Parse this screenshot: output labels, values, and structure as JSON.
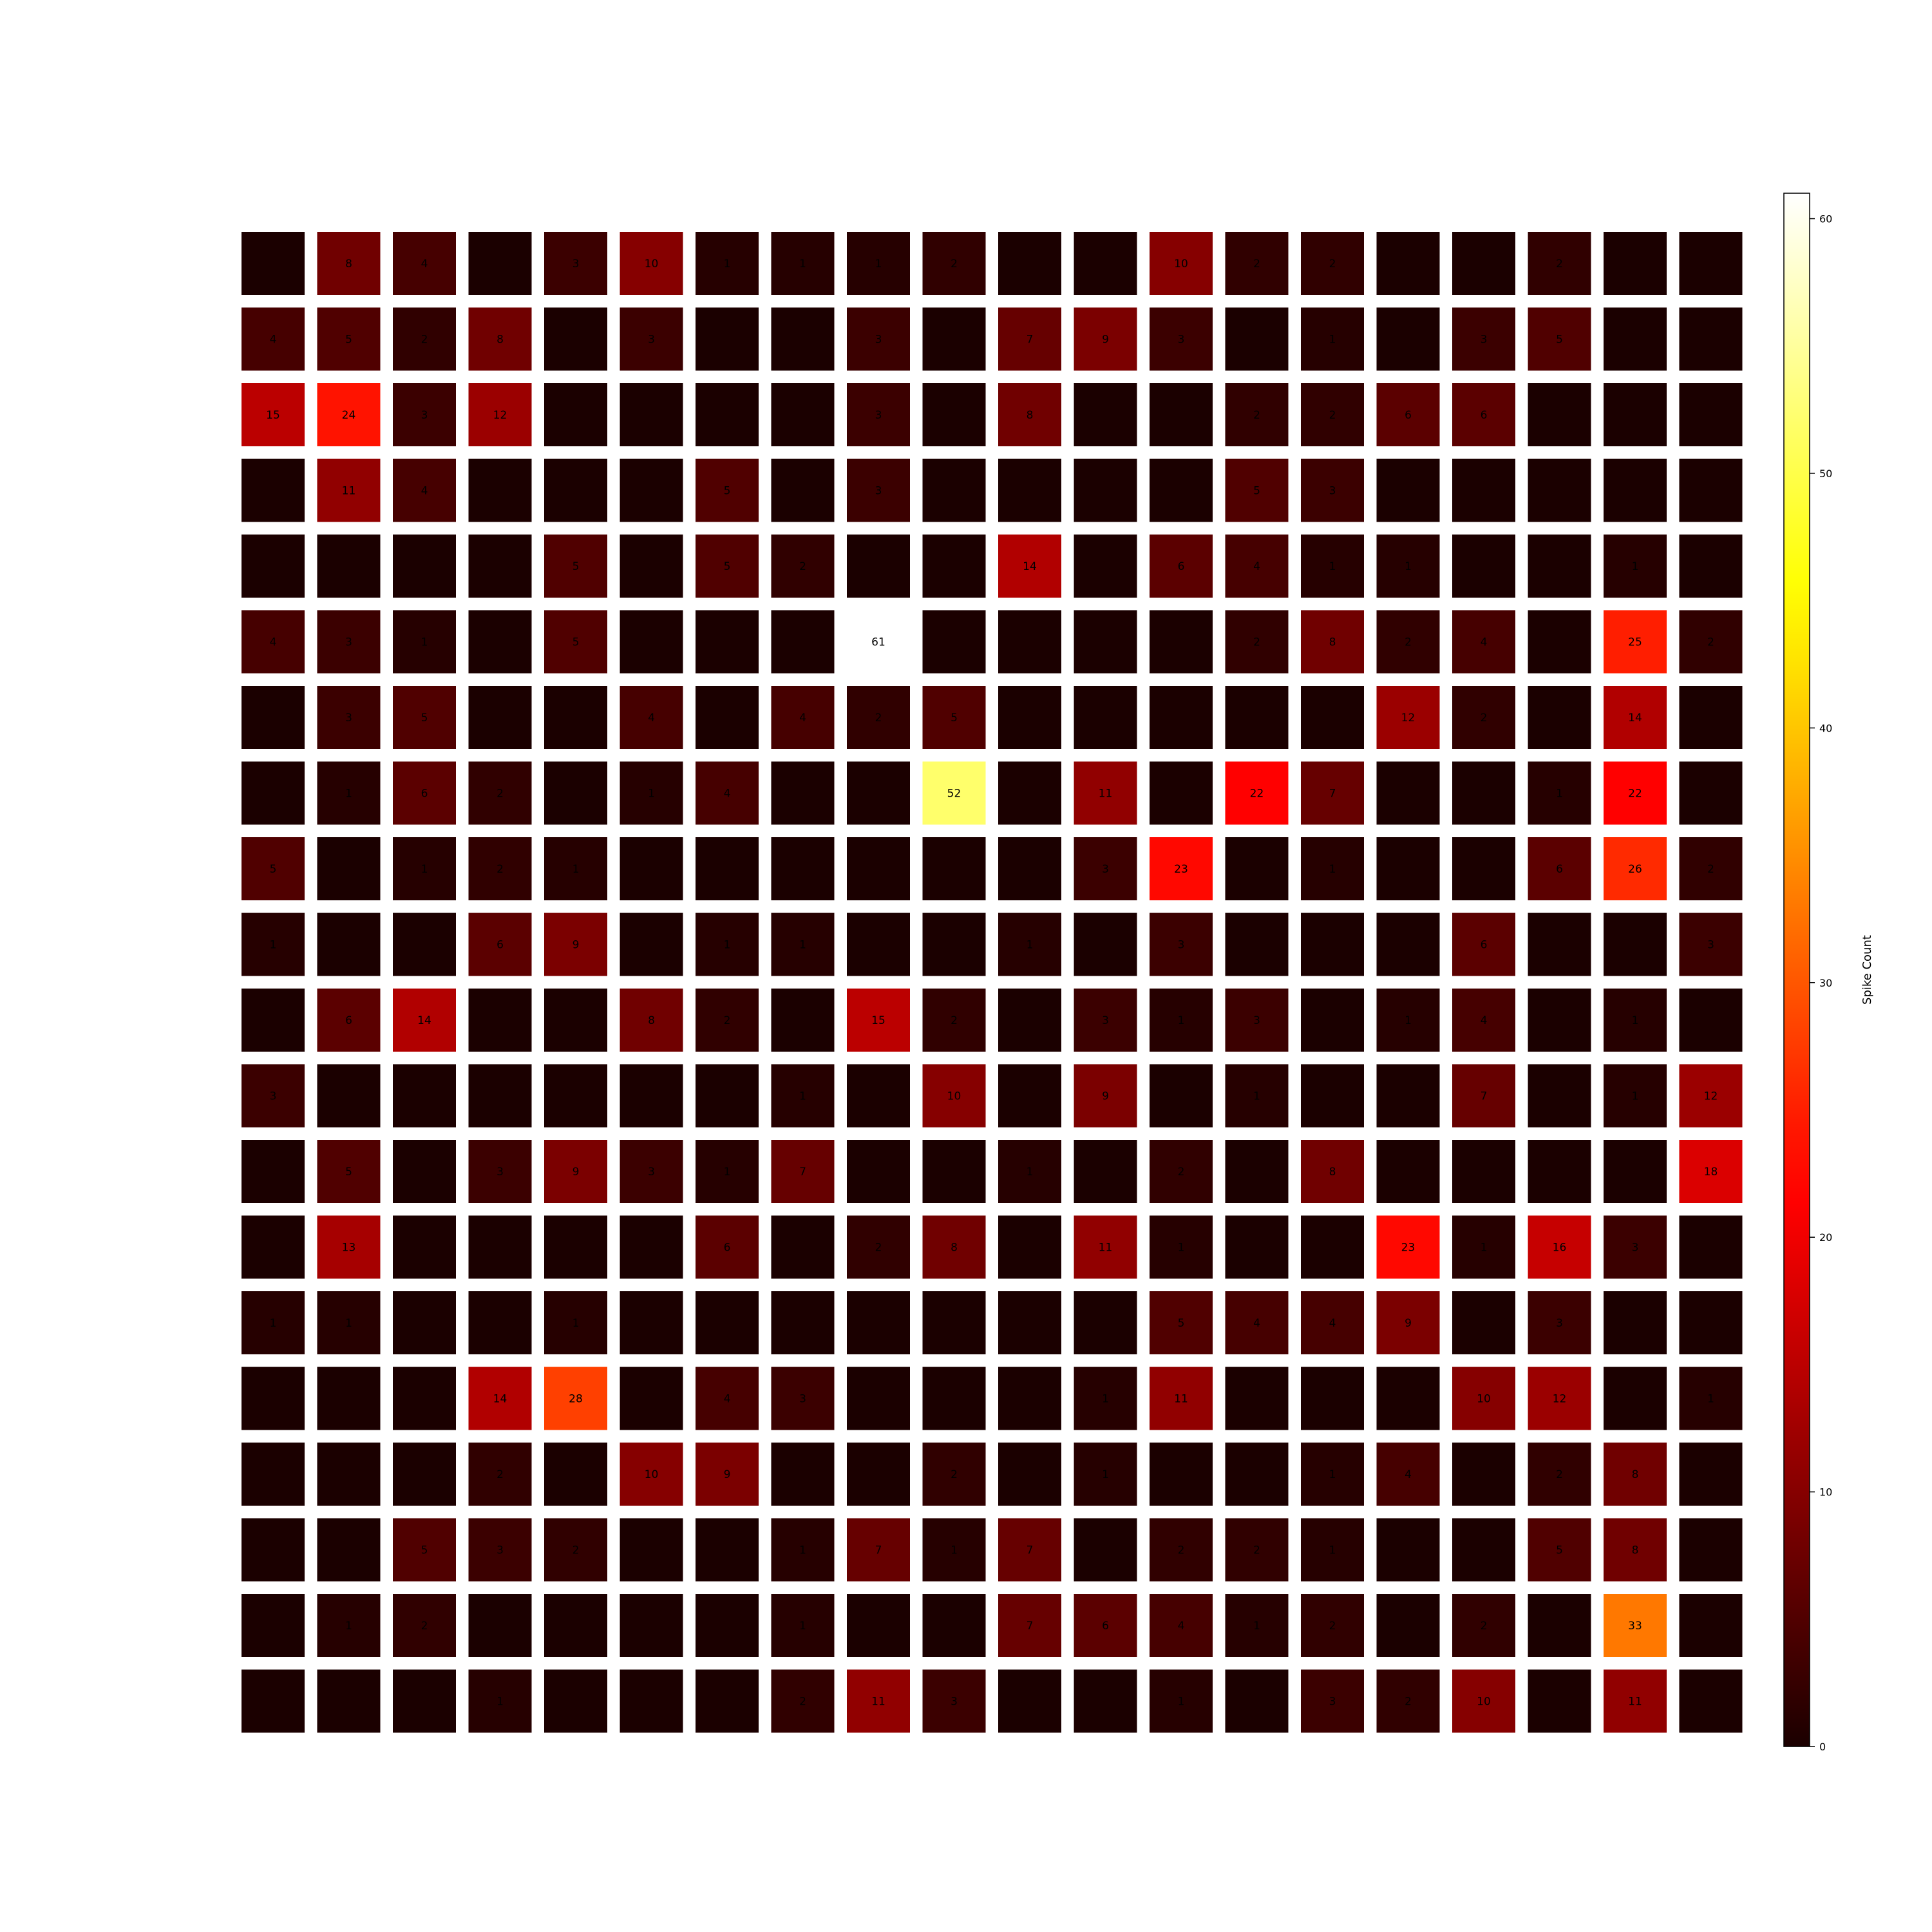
{
  "chart_data": {
    "type": "heatmap",
    "colormap": "hot",
    "rows": 20,
    "cols": 20,
    "values": [
      [
        0,
        8,
        4,
        0,
        3,
        10,
        1,
        1,
        1,
        2,
        0,
        0,
        10,
        2,
        2,
        0,
        0,
        2,
        0,
        0
      ],
      [
        4,
        5,
        2,
        8,
        0,
        3,
        0,
        0,
        3,
        0,
        7,
        9,
        3,
        0,
        1,
        0,
        3,
        5,
        0,
        0
      ],
      [
        15,
        24,
        3,
        12,
        0,
        0,
        0,
        0,
        3,
        0,
        8,
        0,
        0,
        2,
        2,
        6,
        6,
        0,
        0,
        0
      ],
      [
        0,
        11,
        4,
        0,
        0,
        0,
        5,
        0,
        3,
        0,
        0,
        0,
        0,
        5,
        3,
        0,
        0,
        0,
        0,
        0
      ],
      [
        0,
        0,
        0,
        0,
        5,
        0,
        5,
        2,
        0,
        0,
        14,
        0,
        6,
        4,
        1,
        1,
        0,
        0,
        1,
        0
      ],
      [
        4,
        3,
        1,
        0,
        5,
        0,
        0,
        0,
        61,
        0,
        0,
        0,
        0,
        2,
        8,
        2,
        4,
        0,
        25,
        2
      ],
      [
        0,
        3,
        5,
        0,
        0,
        4,
        0,
        4,
        2,
        5,
        0,
        0,
        0,
        0,
        0,
        12,
        2,
        0,
        14,
        0
      ],
      [
        0,
        1,
        6,
        2,
        0,
        1,
        4,
        0,
        0,
        52,
        0,
        11,
        0,
        22,
        7,
        0,
        0,
        1,
        22,
        0
      ],
      [
        5,
        0,
        1,
        2,
        1,
        0,
        0,
        0,
        0,
        0,
        0,
        3,
        23,
        0,
        1,
        0,
        0,
        6,
        26,
        2
      ],
      [
        1,
        0,
        0,
        6,
        9,
        0,
        1,
        1,
        0,
        0,
        1,
        0,
        3,
        0,
        0,
        0,
        6,
        0,
        0,
        3
      ],
      [
        0,
        6,
        14,
        0,
        0,
        8,
        2,
        0,
        15,
        2,
        0,
        3,
        1,
        3,
        0,
        1,
        4,
        0,
        1,
        0
      ],
      [
        3,
        0,
        0,
        0,
        0,
        0,
        0,
        1,
        0,
        10,
        0,
        9,
        0,
        1,
        0,
        0,
        7,
        0,
        1,
        12
      ],
      [
        0,
        5,
        0,
        3,
        9,
        3,
        1,
        7,
        0,
        0,
        1,
        0,
        2,
        0,
        8,
        0,
        0,
        0,
        0,
        18
      ],
      [
        0,
        13,
        0,
        0,
        0,
        0,
        6,
        0,
        2,
        8,
        0,
        11,
        1,
        0,
        0,
        23,
        1,
        16,
        3,
        0
      ],
      [
        1,
        1,
        0,
        0,
        1,
        0,
        0,
        0,
        0,
        0,
        0,
        0,
        5,
        4,
        4,
        9,
        0,
        3,
        0,
        0
      ],
      [
        0,
        0,
        0,
        14,
        28,
        0,
        4,
        3,
        0,
        0,
        0,
        1,
        11,
        0,
        0,
        0,
        10,
        12,
        0,
        1
      ],
      [
        0,
        0,
        0,
        2,
        0,
        10,
        9,
        0,
        0,
        2,
        0,
        1,
        0,
        0,
        1,
        4,
        0,
        2,
        8,
        0
      ],
      [
        0,
        0,
        5,
        3,
        2,
        0,
        0,
        1,
        7,
        1,
        7,
        0,
        2,
        2,
        1,
        0,
        0,
        5,
        8,
        0
      ],
      [
        0,
        1,
        2,
        0,
        0,
        0,
        0,
        1,
        0,
        0,
        7,
        6,
        4,
        1,
        2,
        0,
        2,
        0,
        33,
        0
      ],
      [
        0,
        0,
        0,
        1,
        0,
        0,
        0,
        2,
        11,
        3,
        0,
        0,
        1,
        0,
        3,
        2,
        10,
        0,
        11,
        0
      ]
    ],
    "vmin": 0,
    "vmax": 61,
    "colorbar": {
      "label": "Spike Count",
      "ticks": [
        0,
        10,
        20,
        30,
        40,
        50,
        60
      ],
      "tick_labels": [
        "0",
        "10",
        "20",
        "30",
        "40",
        "50",
        "60"
      ]
    },
    "xlabel": "",
    "ylabel": "",
    "title": "",
    "grid": false
  }
}
